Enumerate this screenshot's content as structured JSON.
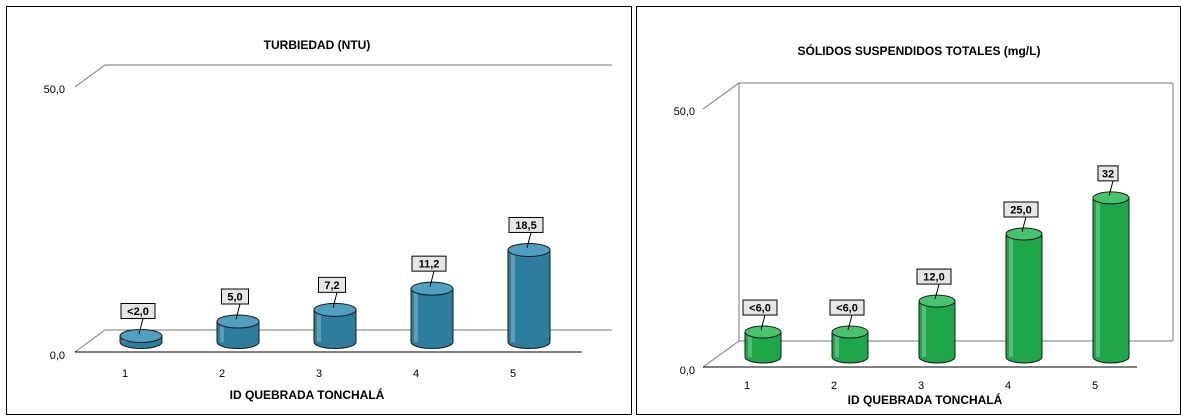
{
  "colors": {
    "left_bar_body": "#2c7d9e",
    "left_bar_top": "#4e9fc0",
    "right_bar_body": "#1ea64a",
    "right_bar_top": "#49c46e",
    "label_box": "#e6e6e6"
  },
  "chart_data": [
    {
      "type": "bar",
      "style": "3d-cylinder",
      "title": "TURBIEDAD (NTU)",
      "xlabel": "ID QUEBRADA TONCHALÁ",
      "ylabel": "",
      "ylim": [
        0,
        50
      ],
      "yticks": [
        "0,0",
        "50,0"
      ],
      "categories": [
        "1",
        "2",
        "3",
        "4",
        "5"
      ],
      "values": [
        2.0,
        5.0,
        7.2,
        11.2,
        18.5
      ],
      "data_labels": [
        "<2,0",
        "5,0",
        "7,2",
        "11,2",
        "18,5"
      ],
      "grid": false,
      "legend": "none"
    },
    {
      "type": "bar",
      "style": "3d-cylinder",
      "title": "SÓLIDOS SUSPENDIDOS TOTALES (mg/L)",
      "xlabel": "ID QUEBRADA TONCHALÁ",
      "ylabel": "",
      "ylim": [
        0,
        50
      ],
      "yticks": [
        "0,0",
        "50,0"
      ],
      "categories": [
        "1",
        "2",
        "3",
        "4",
        "5"
      ],
      "values": [
        6.0,
        6.0,
        12.0,
        25.0,
        32.0
      ],
      "data_labels": [
        "<6,0",
        "<6,0",
        "12,0",
        "25,0",
        "32"
      ],
      "grid": false,
      "legend": "none"
    }
  ]
}
